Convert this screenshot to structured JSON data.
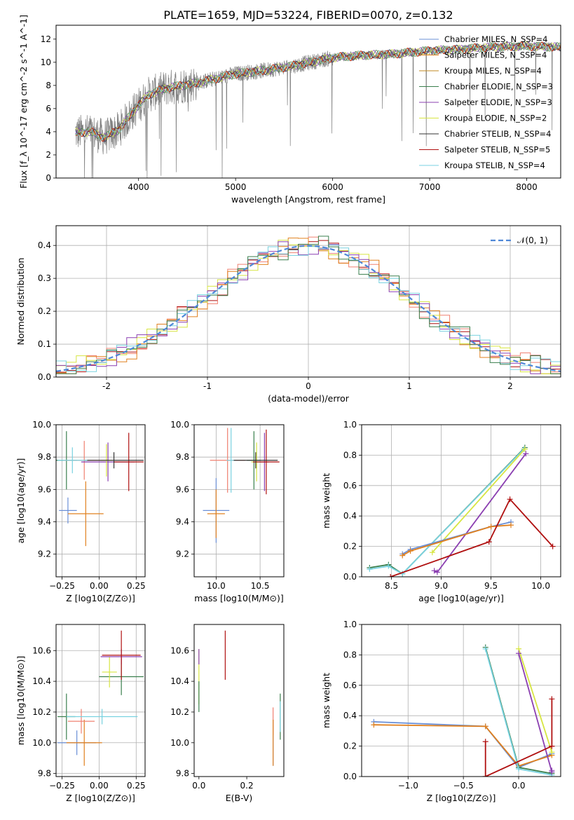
{
  "figure": {
    "title": "PLATE=1659, MJD=53224, FIBERID=0070, z=0.132"
  },
  "chart_data": [
    {
      "id": "spectrum",
      "type": "line",
      "xlabel": "wavelength [Angstrom, rest frame]",
      "ylabel": "Flux [f_λ 10^-17 erg cm^-2 s^-1 A^-1]",
      "xlim": [
        3150,
        8350
      ],
      "ylim": [
        0,
        13.2
      ],
      "xticks": [
        4000,
        5000,
        6000,
        7000,
        8000
      ],
      "yticks": [
        0,
        2,
        4,
        6,
        8,
        10,
        12
      ],
      "grid": false,
      "legend_position": "top-right",
      "legend": [
        {
          "label": "Chabrier MILES, N_SSP=4",
          "color": "#6a8fd6"
        },
        {
          "label": "Salpeter MILES, N_SSP=4",
          "color": "#e0801e"
        },
        {
          "label": "Kroupa MILES, N_SSP=4",
          "color": "#c08a20"
        },
        {
          "label": "Chabrier ELODIE, N_SSP=3",
          "color": "#3a7f4d"
        },
        {
          "label": "Salpeter ELODIE, N_SSP=3",
          "color": "#8b3fb1"
        },
        {
          "label": "Kroupa ELODIE, N_SSP=2",
          "color": "#d7e542"
        },
        {
          "label": "Chabrier STELIB, N_SSP=4",
          "color": "#333333"
        },
        {
          "label": "Salpeter STELIB, N_SSP=5",
          "color": "#b01010"
        },
        {
          "label": "Kroupa STELIB, N_SSP=4",
          "color": "#79d2e0"
        }
      ],
      "data_color": "#808080",
      "model_continuum": {
        "x": [
          3350,
          3500,
          3650,
          3800,
          3950,
          4100,
          4300,
          4600,
          5000,
          5300,
          5600,
          6000,
          6300,
          6600,
          7000,
          7300,
          7600,
          8000,
          8350
        ],
        "y": [
          3.9,
          4.0,
          3.5,
          4.2,
          5.8,
          7.2,
          7.8,
          8.2,
          9.0,
          9.3,
          9.7,
          10.4,
          10.6,
          10.7,
          11.0,
          11.1,
          11.3,
          11.4,
          11.3
        ]
      }
    },
    {
      "id": "residuals",
      "type": "line",
      "xlabel": "(data-model)/error",
      "ylabel": "Normed distribution",
      "xlim": [
        -2.5,
        2.5
      ],
      "ylim": [
        0,
        0.46
      ],
      "xticks": [
        -2,
        -1,
        0,
        1,
        2
      ],
      "yticks": [
        0.0,
        0.1,
        0.2,
        0.3,
        0.4
      ],
      "grid": true,
      "legend_position": "top-right",
      "legend": [
        {
          "label": "𝒩(0, 1)",
          "color": "#4f88d8"
        }
      ],
      "histogram_series": [
        {
          "color": "#b01010",
          "phase": 0.0
        },
        {
          "color": "#f08070",
          "phase": 1.1
        },
        {
          "color": "#e0801e",
          "phase": 2.2
        },
        {
          "color": "#d7e542",
          "phase": 3.3
        },
        {
          "color": "#8b3fb1",
          "phase": 4.4
        },
        {
          "color": "#79d2e0",
          "phase": 5.5
        },
        {
          "color": "#3a7f4d",
          "phase": 6.6
        }
      ]
    },
    {
      "id": "z-vs-age",
      "type": "scatter",
      "xlabel": "Z [log10(Z/Z⊙)]",
      "ylabel": "age [log10(age/yr)]",
      "xlim": [
        -0.29,
        0.31
      ],
      "ylim": [
        9.06,
        10.0
      ],
      "xticks": [
        -0.25,
        0.0,
        0.25
      ],
      "yticks": [
        9.2,
        9.4,
        9.6,
        9.8,
        10.0
      ],
      "grid": true,
      "points": [
        {
          "x": -0.22,
          "y": 9.78,
          "xerr": 0.07,
          "yerr": 0.18,
          "color": "#3a7f4d"
        },
        {
          "x": -0.21,
          "y": 9.47,
          "xerr": 0.06,
          "yerr": 0.08,
          "color": "#6a8fd6"
        },
        {
          "x": -0.09,
          "y": 9.45,
          "xerr": 0.12,
          "yerr": 0.2,
          "color": "#e0801e"
        },
        {
          "x": -0.1,
          "y": 9.78,
          "xerr": 0.14,
          "yerr": 0.12,
          "color": "#f08070"
        },
        {
          "x": 0.06,
          "y": 9.77,
          "xerr": 0.18,
          "yerr": 0.12,
          "color": "#8b3fb1"
        },
        {
          "x": 0.05,
          "y": 9.78,
          "xerr": 0.04,
          "yerr": 0.1,
          "color": "#d7e542"
        },
        {
          "x": 0.2,
          "y": 9.77,
          "xerr": 0.1,
          "yerr": 0.18,
          "color": "#b01010"
        },
        {
          "x": 0.1,
          "y": 9.78,
          "xerr": 0.2,
          "yerr": 0.05,
          "color": "#333333"
        },
        {
          "x": -0.18,
          "y": 9.78,
          "xerr": 0.1,
          "yerr": 0.08,
          "color": "#79d2e0"
        }
      ]
    },
    {
      "id": "mass-vs-age",
      "type": "scatter",
      "xlabel": "mass [log10(M/M⊙)]",
      "ylabel": "",
      "xlim": [
        9.75,
        10.77
      ],
      "ylim": [
        9.06,
        10.0
      ],
      "xticks": [
        10.0,
        10.5
      ],
      "yticks": [
        9.2,
        9.4,
        9.6,
        9.8,
        10.0
      ],
      "grid": true,
      "points": [
        {
          "x": 10.0,
          "y": 9.47,
          "xerr": 0.15,
          "yerr": 0.2,
          "color": "#6a8fd6"
        },
        {
          "x": 10.0,
          "y": 9.45,
          "xerr": 0.1,
          "yerr": 0.15,
          "color": "#e0801e"
        },
        {
          "x": 10.13,
          "y": 9.78,
          "xerr": 0.2,
          "yerr": 0.2,
          "color": "#f08070"
        },
        {
          "x": 10.17,
          "y": 9.78,
          "xerr": 0.05,
          "yerr": 0.2,
          "color": "#79d2e0"
        },
        {
          "x": 10.43,
          "y": 9.78,
          "xerr": 0.08,
          "yerr": 0.18,
          "color": "#3a7f4d"
        },
        {
          "x": 10.46,
          "y": 9.77,
          "xerr": 0.06,
          "yerr": 0.12,
          "color": "#d7e542"
        },
        {
          "x": 10.55,
          "y": 9.77,
          "xerr": 0.05,
          "yerr": 0.18,
          "color": "#8b3fb1"
        },
        {
          "x": 10.57,
          "y": 9.77,
          "xerr": 0.15,
          "yerr": 0.2,
          "color": "#b01010"
        },
        {
          "x": 10.45,
          "y": 9.78,
          "xerr": 0.25,
          "yerr": 0.05,
          "color": "#333333"
        }
      ]
    },
    {
      "id": "age-vs-weight",
      "type": "line",
      "xlabel": "age [log10(age/yr)]",
      "ylabel": "mass weight",
      "xlim": [
        8.2,
        10.2
      ],
      "ylim": [
        0,
        1.0
      ],
      "xticks": [
        8.5,
        9.0,
        9.5,
        10.0
      ],
      "yticks": [
        0.0,
        0.2,
        0.4,
        0.6,
        0.8,
        1.0
      ],
      "grid": true,
      "series": [
        {
          "color": "#3a7f4d",
          "x": [
            8.28,
            8.47,
            8.61,
            9.84
          ],
          "y": [
            0.06,
            0.08,
            0.02,
            0.85
          ]
        },
        {
          "color": "#79d2e0",
          "x": [
            8.28,
            8.47,
            8.61,
            9.83
          ],
          "y": [
            0.05,
            0.07,
            0.02,
            0.84
          ]
        },
        {
          "color": "#d7e542",
          "x": [
            8.91,
            9.84
          ],
          "y": [
            0.16,
            0.84
          ]
        },
        {
          "color": "#8b3fb1",
          "x": [
            8.93,
            8.96,
            9.85
          ],
          "y": [
            0.04,
            0.03,
            0.81
          ]
        },
        {
          "color": "#6a8fd6",
          "x": [
            8.61,
            8.69,
            9.5,
            9.7
          ],
          "y": [
            0.15,
            0.18,
            0.33,
            0.36
          ]
        },
        {
          "color": "#e0801e",
          "x": [
            8.61,
            8.69,
            9.5,
            9.7
          ],
          "y": [
            0.14,
            0.17,
            0.33,
            0.34
          ]
        },
        {
          "color": "#b01010",
          "x": [
            8.49,
            9.48,
            9.69,
            10.12
          ],
          "y": [
            0.0,
            0.23,
            0.51,
            0.2
          ]
        }
      ]
    },
    {
      "id": "z-vs-mass",
      "type": "scatter",
      "xlabel": "Z [log10(Z/Z⊙)]",
      "ylabel": "mass [log10(M/M⊙)]",
      "xlim": [
        -0.29,
        0.31
      ],
      "ylim": [
        9.78,
        10.77
      ],
      "xticks": [
        -0.25,
        0.0,
        0.25
      ],
      "yticks": [
        9.8,
        10.0,
        10.2,
        10.4,
        10.6
      ],
      "grid": true,
      "points": [
        {
          "x": -0.22,
          "y": 10.17,
          "xerr": 0.06,
          "yerr": 0.15,
          "color": "#3a7f4d"
        },
        {
          "x": -0.15,
          "y": 10.0,
          "xerr": 0.13,
          "yerr": 0.08,
          "color": "#6a8fd6"
        },
        {
          "x": -0.1,
          "y": 10.0,
          "xerr": 0.12,
          "yerr": 0.15,
          "color": "#e0801e"
        },
        {
          "x": -0.12,
          "y": 10.14,
          "xerr": 0.09,
          "yerr": 0.08,
          "color": "#f08070"
        },
        {
          "x": 0.15,
          "y": 10.43,
          "xerr": 0.15,
          "yerr": 0.12,
          "color": "#3a7f4d"
        },
        {
          "x": 0.07,
          "y": 10.46,
          "xerr": 0.05,
          "yerr": 0.1,
          "color": "#d7e542"
        },
        {
          "x": 0.15,
          "y": 10.56,
          "xerr": 0.14,
          "yerr": 0.05,
          "color": "#8b3fb1"
        },
        {
          "x": 0.15,
          "y": 10.57,
          "xerr": 0.13,
          "yerr": 0.16,
          "color": "#b01010"
        },
        {
          "x": 0.02,
          "y": 10.17,
          "xerr": 0.24,
          "yerr": 0.05,
          "color": "#79d2e0"
        }
      ]
    },
    {
      "id": "ebv-vs-mass",
      "type": "scatter",
      "xlabel": "E(B-V)",
      "ylabel": "",
      "xlim": [
        -0.02,
        0.355
      ],
      "ylim": [
        9.78,
        10.77
      ],
      "xticks": [
        0.0,
        0.2
      ],
      "yticks": [
        9.8,
        10.0,
        10.2,
        10.4,
        10.6
      ],
      "grid": false,
      "points": [
        {
          "x": 0.0,
          "y": 10.43,
          "xerr": 0,
          "yerr": 0.18,
          "color": "#d7e542"
        },
        {
          "x": 0.0,
          "y": 10.56,
          "xerr": 0,
          "yerr": 0.05,
          "color": "#8b3fb1"
        },
        {
          "x": 0.0,
          "y": 10.3,
          "xerr": 0,
          "yerr": 0.1,
          "color": "#3a7f4d"
        },
        {
          "x": 0.11,
          "y": 10.57,
          "xerr": 0,
          "yerr": 0.16,
          "color": "#b01010"
        },
        {
          "x": 0.31,
          "y": 10.0,
          "xerr": 0,
          "yerr": 0.15,
          "color": "#6a8fd6"
        },
        {
          "x": 0.31,
          "y": 10.14,
          "xerr": 0,
          "yerr": 0.09,
          "color": "#f08070"
        },
        {
          "x": 0.31,
          "y": 10.0,
          "xerr": 0,
          "yerr": 0.15,
          "color": "#e0801e"
        },
        {
          "x": 0.34,
          "y": 10.17,
          "xerr": 0,
          "yerr": 0.15,
          "color": "#3a7f4d"
        },
        {
          "x": 0.34,
          "y": 10.17,
          "xerr": 0,
          "yerr": 0.1,
          "color": "#79d2e0"
        }
      ]
    },
    {
      "id": "z-vs-weight",
      "type": "line",
      "xlabel": "Z [log10(Z/Z⊙)]",
      "ylabel": "mass weight",
      "xlim": [
        -1.42,
        0.38
      ],
      "ylim": [
        0,
        1.0
      ],
      "xticks": [
        -1.0,
        -0.5,
        0.0
      ],
      "yticks": [
        0.0,
        0.2,
        0.4,
        0.6,
        0.8,
        1.0
      ],
      "grid": true,
      "series": [
        {
          "color": "#6a8fd6",
          "x": [
            -1.31,
            -0.3,
            0.0,
            0.3
          ],
          "y": [
            0.36,
            0.33,
            0.06,
            0.15
          ]
        },
        {
          "color": "#e0801e",
          "x": [
            -1.31,
            -0.3,
            0.0,
            0.3
          ],
          "y": [
            0.34,
            0.33,
            0.07,
            0.14
          ]
        },
        {
          "color": "#3a7f4d",
          "x": [
            -0.3,
            0.0,
            0.3
          ],
          "y": [
            0.85,
            0.06,
            0.02
          ]
        },
        {
          "color": "#79d2e0",
          "x": [
            -0.3,
            0.0,
            0.3
          ],
          "y": [
            0.84,
            0.05,
            0.01
          ]
        },
        {
          "color": "#d7e542",
          "x": [
            0.0,
            0.3
          ],
          "y": [
            0.84,
            0.16
          ]
        },
        {
          "color": "#8b3fb1",
          "x": [
            0.0,
            0.3,
            0.3
          ],
          "y": [
            0.81,
            0.03,
            0.04
          ]
        },
        {
          "color": "#b01010",
          "x": [
            -0.3,
            -0.3,
            -0.3,
            0.3,
            0.3,
            0.3
          ],
          "y": [
            0.23,
            0.0,
            0.0,
            0.2,
            0.51,
            0.2
          ]
        }
      ]
    }
  ]
}
